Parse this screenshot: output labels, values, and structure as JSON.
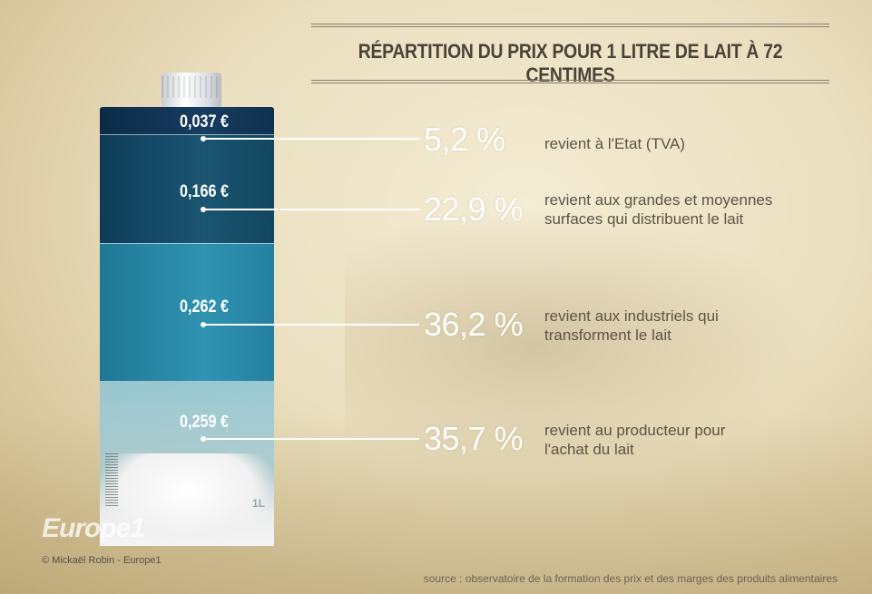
{
  "chart_data": {
    "type": "bar",
    "title": "RÉPARTITION DU PRIX POUR 1 LITRE DE LAIT À 72 CENTIMES",
    "categories": [
      "revient à l'Etat (TVA)",
      "revient aux grandes et moyennes surfaces qui distribuent le lait",
      "revient aux industriels qui transforment le lait",
      "revient au producteur pour l'achat du lait"
    ],
    "series": [
      {
        "values": [
          0.037,
          0.166,
          0.262,
          0.259
        ]
      }
    ],
    "value_labels": [
      "0,037 €",
      "0,166 €",
      "0,262 €",
      "0,259 €"
    ],
    "percent_labels": [
      "5,2 %",
      "22,9 %",
      "36,2 %",
      "35,7 %"
    ],
    "percent_values": [
      5.2,
      22.9,
      36.2,
      35.7
    ],
    "colors": [
      "#0f3050",
      "#134a66",
      "#2a8aa9",
      "#9ccde0"
    ],
    "description_lines": [
      [
        "revient à l'Etat (TVA)"
      ],
      [
        "revient aux grandes et moyennes",
        "surfaces qui distribuent le lait"
      ],
      [
        "revient aux industriels qui",
        "transforment le lait"
      ],
      [
        "revient au producteur pour",
        "l'achat du lait"
      ]
    ]
  },
  "carton": {
    "volume_mark": "1L"
  },
  "brand": "Europe1",
  "credit": "© Mickaël Robin - Europe1",
  "source": "source : observatoire de la formation des prix et des marges des produits alimentaires"
}
